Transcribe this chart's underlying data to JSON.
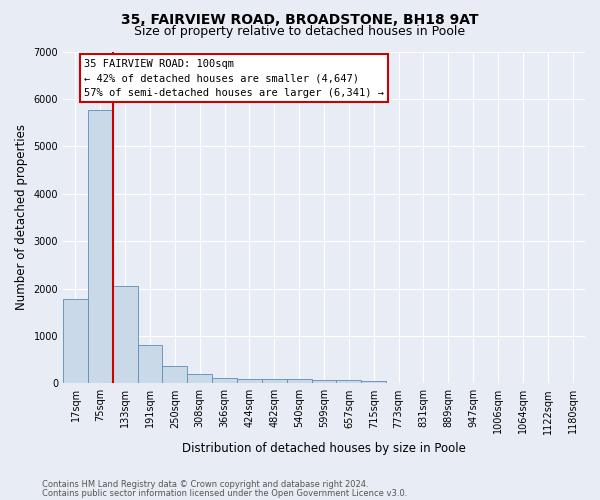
{
  "title1": "35, FAIRVIEW ROAD, BROADSTONE, BH18 9AT",
  "title2": "Size of property relative to detached houses in Poole",
  "xlabel": "Distribution of detached houses by size in Poole",
  "ylabel": "Number of detached properties",
  "categories": [
    "17sqm",
    "75sqm",
    "133sqm",
    "191sqm",
    "250sqm",
    "308sqm",
    "366sqm",
    "424sqm",
    "482sqm",
    "540sqm",
    "599sqm",
    "657sqm",
    "715sqm",
    "773sqm",
    "831sqm",
    "889sqm",
    "947sqm",
    "1006sqm",
    "1064sqm",
    "1122sqm",
    "1180sqm"
  ],
  "values": [
    1780,
    5770,
    2060,
    810,
    360,
    200,
    120,
    100,
    90,
    85,
    75,
    60,
    50,
    0,
    0,
    0,
    0,
    0,
    0,
    0,
    0
  ],
  "bar_color": "#c9d9e8",
  "bar_edge_color": "#5b8db8",
  "property_line_x": 1.5,
  "annotation_line1": "35 FAIRVIEW ROAD: 100sqm",
  "annotation_line2": "← 42% of detached houses are smaller (4,647)",
  "annotation_line3": "57% of semi-detached houses are larger (6,341) →",
  "annotation_box_facecolor": "#ffffff",
  "annotation_box_edgecolor": "#cc0000",
  "red_line_color": "#cc0000",
  "ylim": [
    0,
    7000
  ],
  "yticks": [
    0,
    1000,
    2000,
    3000,
    4000,
    5000,
    6000,
    7000
  ],
  "footer1": "Contains HM Land Registry data © Crown copyright and database right 2024.",
  "footer2": "Contains public sector information licensed under the Open Government Licence v3.0.",
  "bg_color": "#e8edf5",
  "grid_color": "#ffffff",
  "title1_fontsize": 10,
  "title2_fontsize": 9,
  "axis_label_fontsize": 8.5,
  "tick_fontsize": 7,
  "annotation_fontsize": 7.5,
  "footer_fontsize": 6
}
